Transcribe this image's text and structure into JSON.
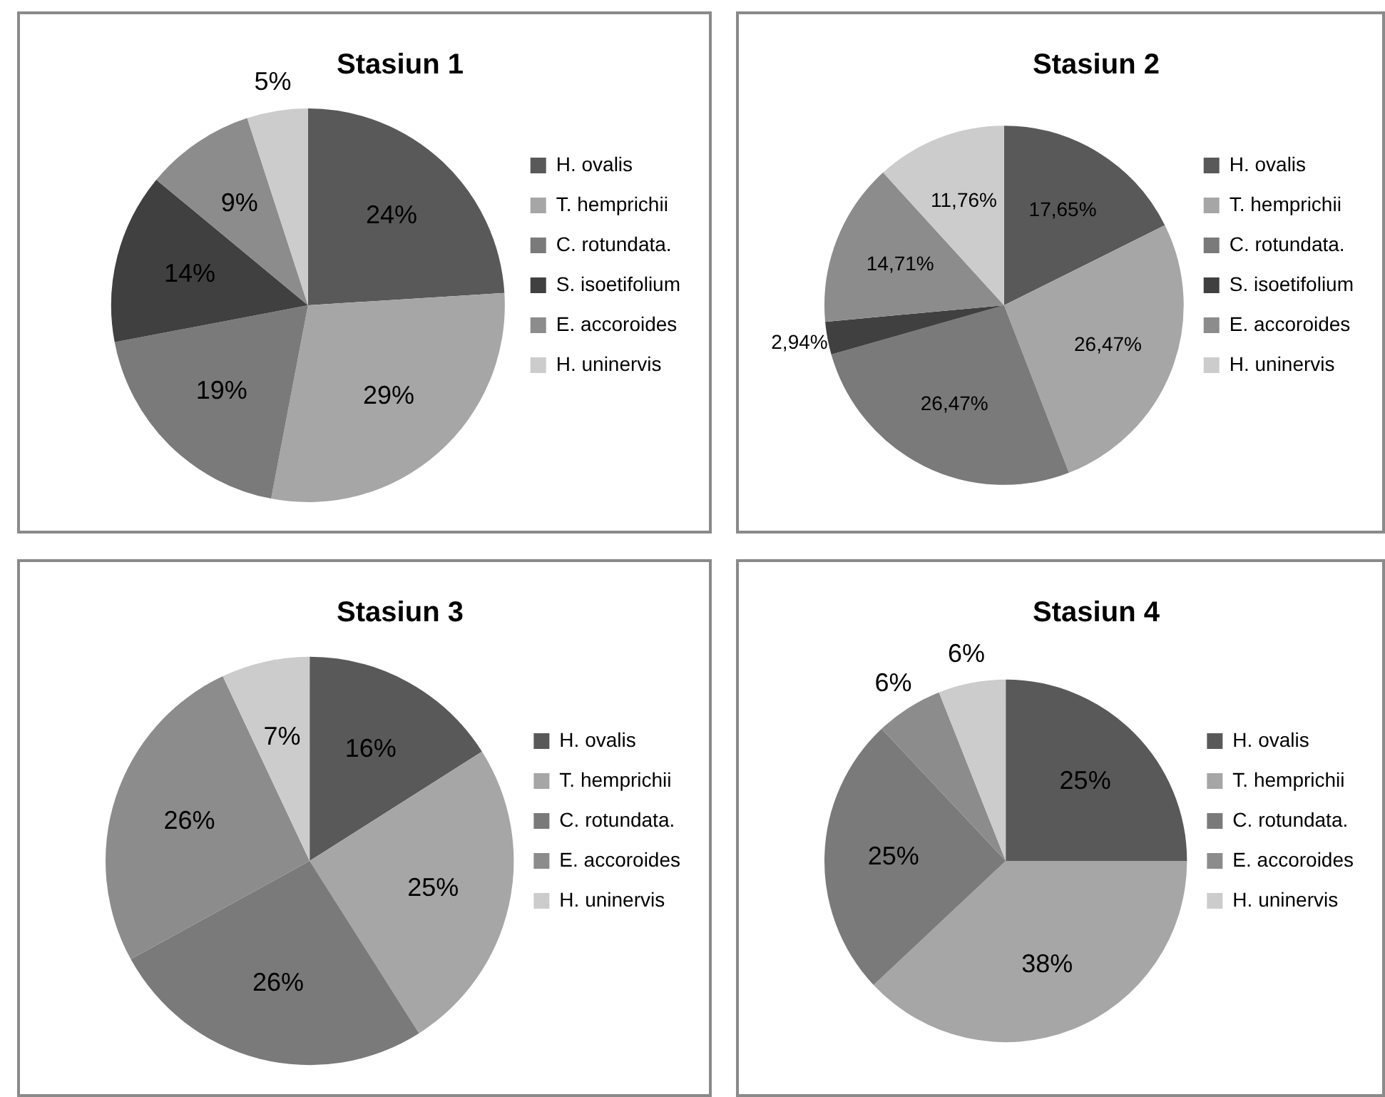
{
  "chart_data": [
    {
      "type": "pie",
      "title": "Stasiun 1",
      "legend": "right",
      "data_labels": true,
      "categories": [
        "H. ovalis",
        "T. hemprichii",
        "C. rotundata.",
        "S. isoetifolium",
        "E. accoroides",
        "H. uninervis"
      ],
      "values": [
        24,
        29,
        19,
        14,
        9,
        5
      ],
      "value_labels": [
        "24%",
        "29%",
        "19%",
        "14%",
        "9%",
        "5%"
      ],
      "colors": [
        "#595959",
        "#a6a6a6",
        "#7a7a7a",
        "#404040",
        "#8c8c8c",
        "#cccccc"
      ]
    },
    {
      "type": "pie",
      "title": "Stasiun 2",
      "legend": "right",
      "data_labels": true,
      "categories": [
        "H. ovalis",
        "T. hemprichii",
        "C. rotundata.",
        "S. isoetifolium",
        "E. accoroides",
        "H. uninervis"
      ],
      "values": [
        17.65,
        26.47,
        26.47,
        2.94,
        14.71,
        11.76
      ],
      "value_labels": [
        "17,65%",
        "26,47%",
        "26,47%",
        "2,94%",
        "14,71%",
        "11,76%"
      ],
      "colors": [
        "#595959",
        "#a6a6a6",
        "#7a7a7a",
        "#404040",
        "#8c8c8c",
        "#cccccc"
      ]
    },
    {
      "type": "pie",
      "title": "Stasiun 3",
      "legend": "right",
      "data_labels": true,
      "categories": [
        "H. ovalis",
        "T. hemprichii",
        "C. rotundata.",
        "E. accoroides",
        "H. uninervis"
      ],
      "values": [
        16,
        25,
        26,
        26,
        7
      ],
      "value_labels": [
        "16%",
        "25%",
        "26%",
        "26%",
        "7%"
      ],
      "colors": [
        "#595959",
        "#a6a6a6",
        "#7a7a7a",
        "#8c8c8c",
        "#cccccc"
      ]
    },
    {
      "type": "pie",
      "title": "Stasiun 4",
      "legend": "right",
      "data_labels": true,
      "categories": [
        "H. ovalis",
        "T. hemprichii",
        "C. rotundata.",
        "E. accoroides",
        "H. uninervis"
      ],
      "values": [
        25,
        38,
        25,
        6,
        6
      ],
      "value_labels": [
        "25%",
        "38%",
        "25%",
        "6%",
        "6%"
      ],
      "colors": [
        "#595959",
        "#a6a6a6",
        "#7a7a7a",
        "#8c8c8c",
        "#cccccc"
      ]
    }
  ]
}
